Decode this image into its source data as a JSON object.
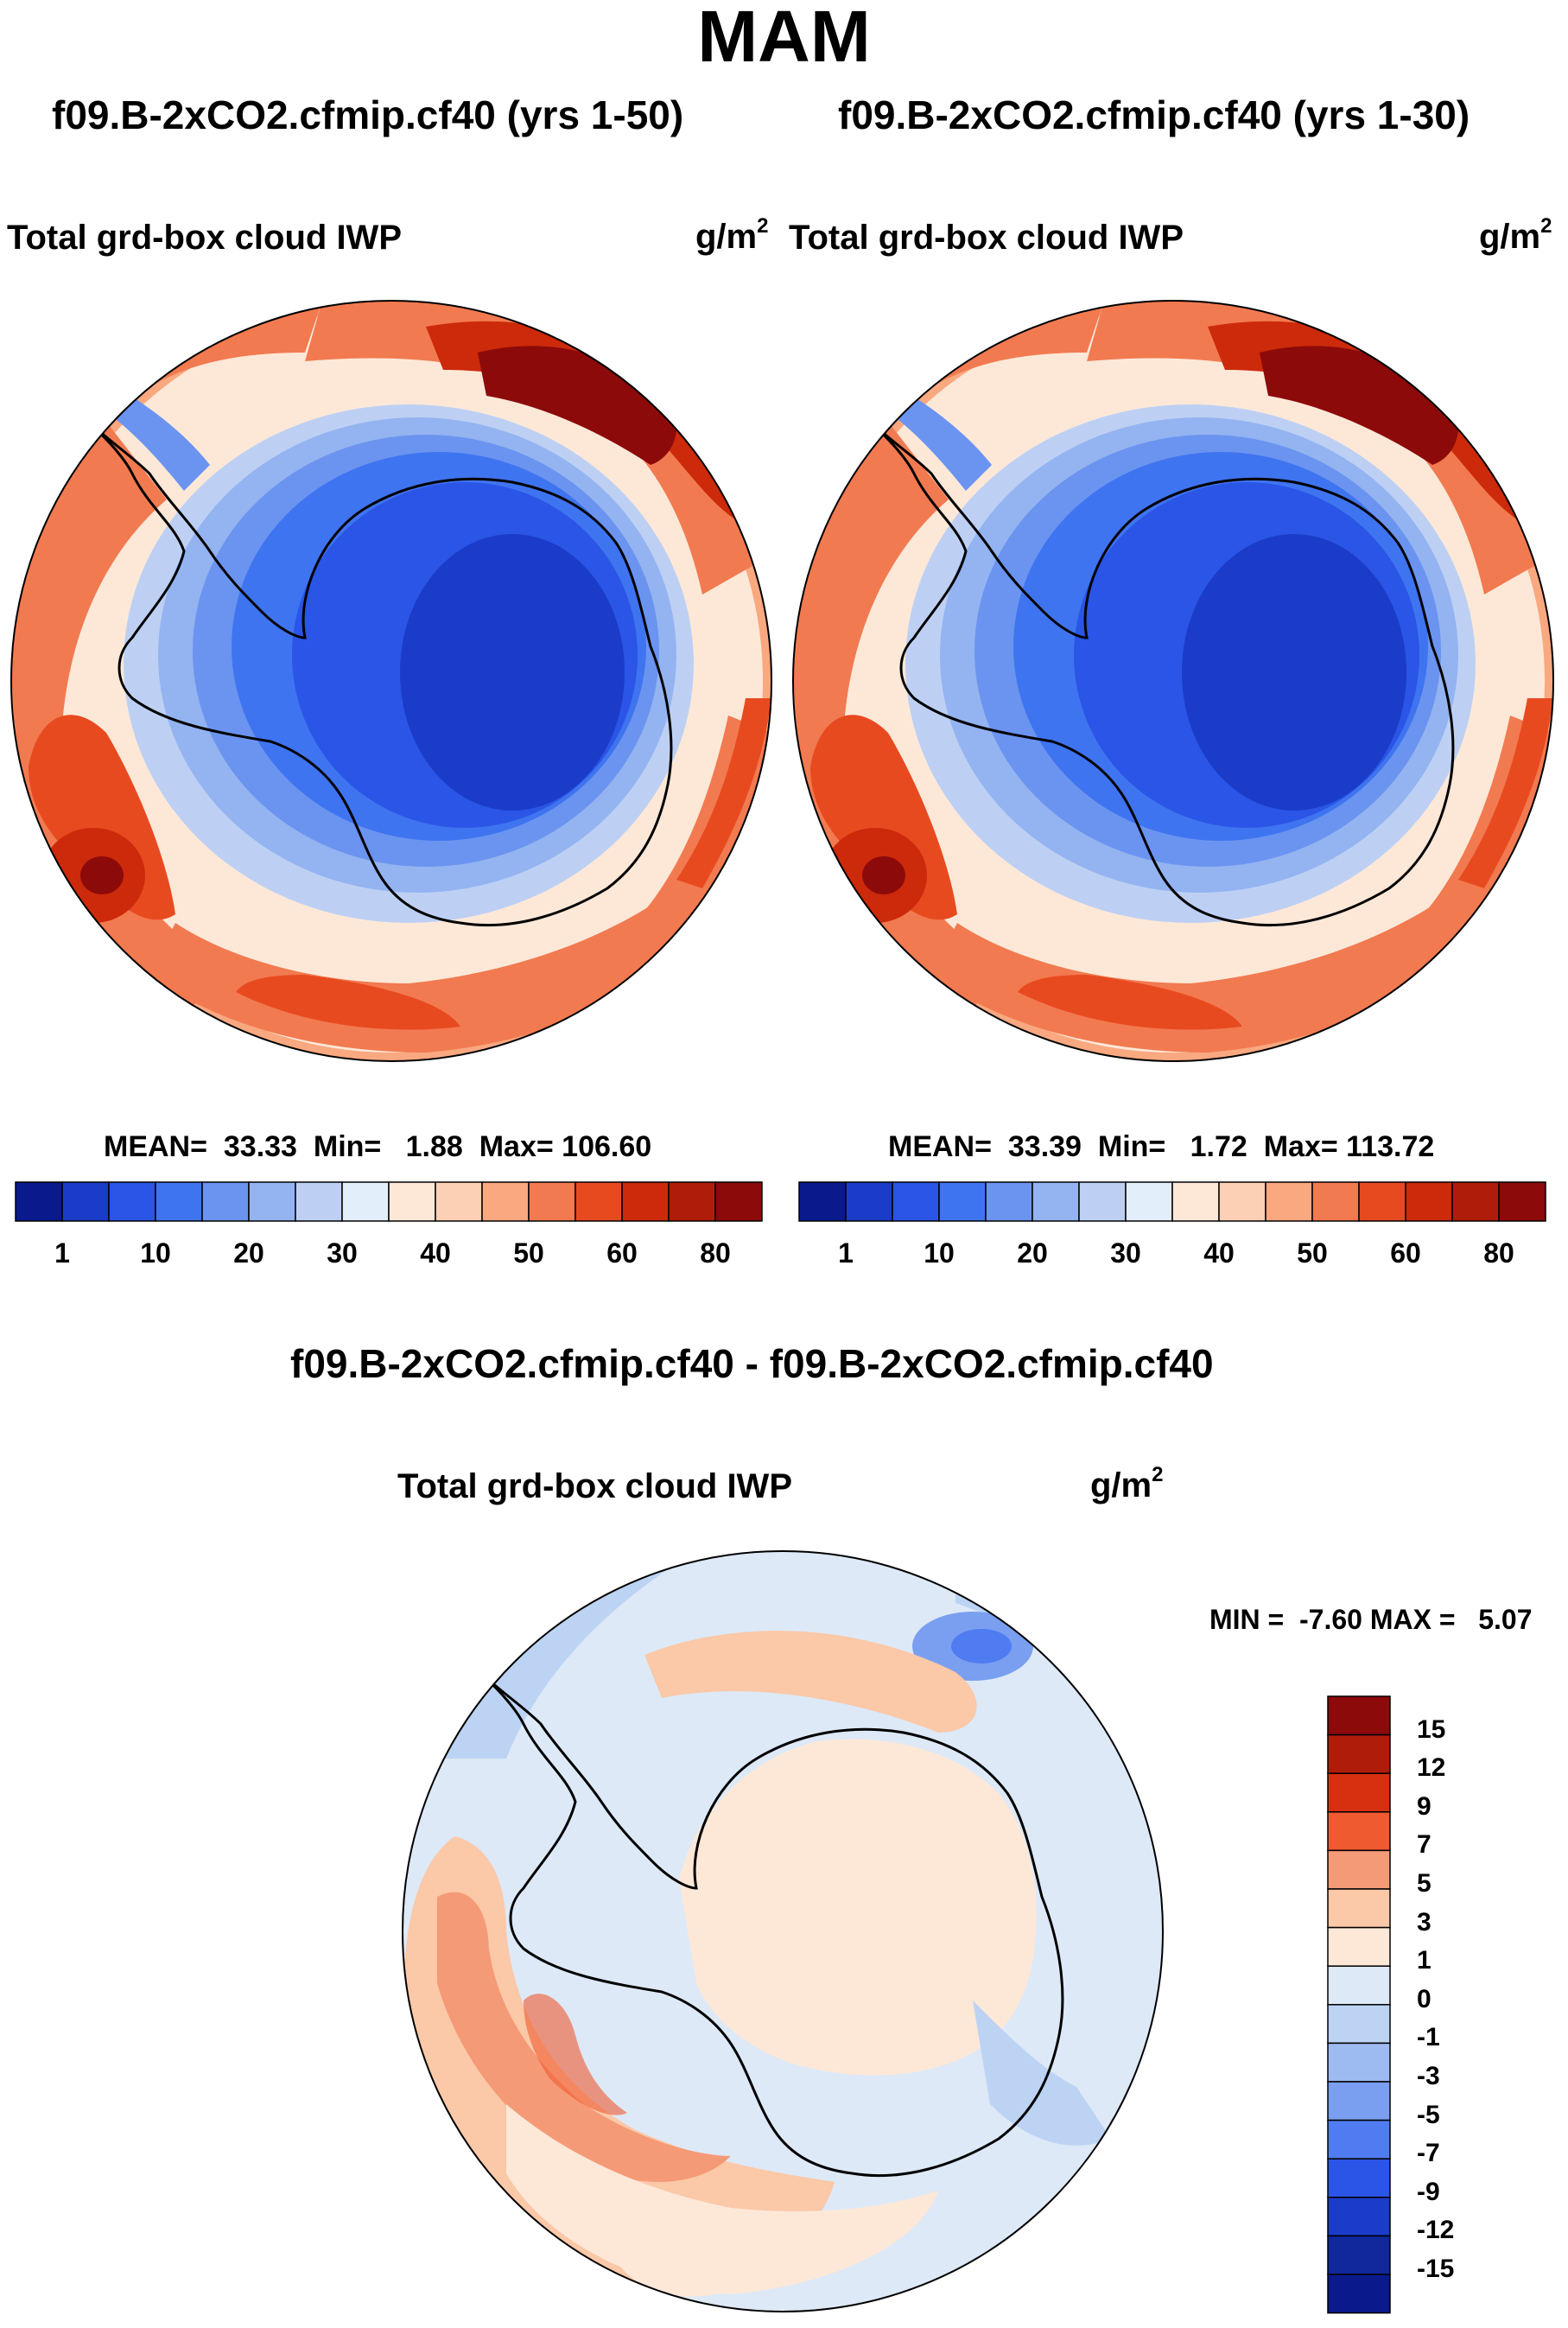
{
  "title": "MAM",
  "panels": [
    {
      "case_title": "f09.B-2xCO2.cfmip.cf40 (yrs 1-50)",
      "variable": "Total grd-box cloud IWP",
      "units": "g/m",
      "units_exp": "2",
      "mean_label": "MEAN=",
      "mean": "33.33",
      "min_label": "Min=",
      "min": "1.88",
      "max_label": "Max=",
      "max": "106.60"
    },
    {
      "case_title": "f09.B-2xCO2.cfmip.cf40 (yrs 1-30)",
      "variable": "Total grd-box cloud IWP",
      "units": "g/m",
      "units_exp": "2",
      "mean_label": "MEAN=",
      "mean": "33.39",
      "min_label": "Min=",
      "min": "1.72",
      "max_label": "Max=",
      "max": "113.72"
    }
  ],
  "diff_panel": {
    "case_title": "f09.B-2xCO2.cfmip.cf40 - f09.B-2xCO2.cfmip.cf40",
    "variable": "Total grd-box cloud IWP",
    "units": "g/m",
    "units_exp": "2",
    "min_label": "MIN =",
    "min": "-7.60",
    "max_label": "MAX =",
    "max": "5.07"
  },
  "colors": {
    "seq": [
      "#0a1a8c",
      "#1a3cc8",
      "#2a55e6",
      "#3f74f0",
      "#6b94f0",
      "#93b4f0",
      "#bdd0f4",
      "#e2eefa",
      "#fde8d8",
      "#fcd0b4",
      "#f9a880",
      "#f27a50",
      "#e84a20",
      "#cc2a0a",
      "#b01c0a",
      "#8c0a0a"
    ],
    "diff": [
      "#8c0a0a",
      "#b01c0a",
      "#d63010",
      "#f05a30",
      "#f59a76",
      "#fbc8a8",
      "#fde8d8",
      "#dde9f7",
      "#bcd3f4",
      "#9dbaf1",
      "#7a9ff0",
      "#4f7cf0",
      "#2a55e6",
      "#1a3cc8",
      "#0a1a8c"
    ],
    "land_outline": "#000000"
  },
  "chart_data": [
    {
      "type": "map",
      "title": "f09.B-2xCO2.cfmip.cf40 (yrs 1-50)",
      "projection": "south-polar stereographic",
      "variable": "Total grd-box cloud IWP",
      "units": "g/m2",
      "mean": 33.33,
      "min": 1.88,
      "max": 106.6,
      "colorbar_levels": [
        1,
        5,
        10,
        15,
        20,
        25,
        30,
        35,
        40,
        45,
        50,
        55,
        60,
        70,
        80
      ],
      "colorbar_labels": [
        "1",
        "10",
        "20",
        "30",
        "40",
        "50",
        "60",
        "80"
      ]
    },
    {
      "type": "map",
      "title": "f09.B-2xCO2.cfmip.cf40 (yrs 1-30)",
      "projection": "south-polar stereographic",
      "variable": "Total grd-box cloud IWP",
      "units": "g/m2",
      "mean": 33.39,
      "min": 1.72,
      "max": 113.72,
      "colorbar_levels": [
        1,
        5,
        10,
        15,
        20,
        25,
        30,
        35,
        40,
        45,
        50,
        55,
        60,
        70,
        80
      ],
      "colorbar_labels": [
        "1",
        "10",
        "20",
        "30",
        "40",
        "50",
        "60",
        "80"
      ]
    },
    {
      "type": "map",
      "title": "f09.B-2xCO2.cfmip.cf40 - f09.B-2xCO2.cfmip.cf40",
      "projection": "south-polar stereographic",
      "variable": "Total grd-box cloud IWP",
      "units": "g/m2",
      "min": -7.6,
      "max": 5.07,
      "colorbar_levels": [
        15,
        12,
        9,
        7,
        5,
        3,
        1,
        0,
        -1,
        -3,
        -5,
        -7,
        -9,
        -12,
        -15
      ],
      "colorbar_labels": [
        "15",
        "12",
        "9",
        "7",
        "5",
        "3",
        "1",
        "0",
        "-1",
        "-3",
        "-5",
        "-7",
        "-9",
        "-12",
        "-15"
      ]
    }
  ]
}
